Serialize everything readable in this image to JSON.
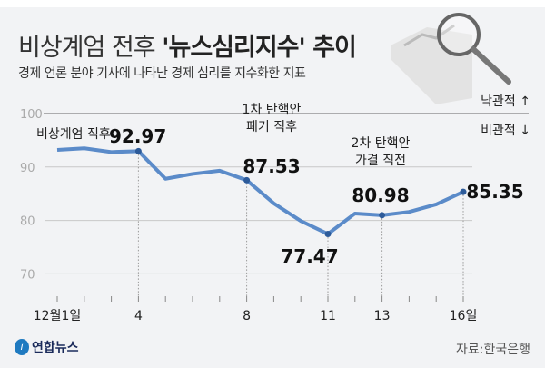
{
  "header": {
    "title_light": "비상계엄 전후",
    "title_bold": "'뉴스심리지수' 추이",
    "subtitle": "경제 언론 분야 기사에 나타난 경제 심리를 지수화한 지표"
  },
  "footer": {
    "logo": "연합뉴스",
    "source": "자료:한국은행"
  },
  "colors": {
    "line": "#5b8bc9",
    "point": "#2d5b9a",
    "grid": "#c8c8c8",
    "background": "#f2f3f5"
  },
  "chart_data": {
    "type": "line",
    "title": "비상계엄 전후 '뉴스심리지수' 추이",
    "subtitle": "경제 언론 분야 기사에 나타난 경제 심리를 지수화한 지표",
    "x": [
      1,
      2,
      3,
      4,
      5,
      6,
      7,
      8,
      9,
      10,
      11,
      12,
      13,
      14,
      15,
      16
    ],
    "values": [
      93.2,
      93.5,
      92.8,
      92.97,
      87.8,
      88.7,
      89.3,
      87.53,
      83.2,
      79.9,
      77.47,
      81.3,
      80.98,
      81.6,
      83.0,
      85.35
    ],
    "x_tick_labels": [
      {
        "x": 1,
        "label": "12월1일"
      },
      {
        "x": 4,
        "label": "4"
      },
      {
        "x": 8,
        "label": "8"
      },
      {
        "x": 11,
        "label": "11"
      },
      {
        "x": 13,
        "label": "13"
      },
      {
        "x": 16,
        "label": "16일"
      }
    ],
    "y_ticks": [
      100,
      90,
      80,
      70
    ],
    "ylim": [
      67,
      100
    ],
    "grid": true,
    "direction_labels": {
      "up": "낙관적 ↑",
      "down": "비관적 ↓"
    },
    "highlights": [
      {
        "x": 4,
        "value_label": "92.97",
        "note": [
          "비상계엄 직후"
        ]
      },
      {
        "x": 8,
        "value_label": "87.53",
        "note": [
          "1차 탄핵안",
          "폐기 직후"
        ]
      },
      {
        "x": 11,
        "value_label": "77.47",
        "note": []
      },
      {
        "x": 13,
        "value_label": "80.98",
        "note": [
          "2차 탄핵안",
          "가결 직전"
        ]
      },
      {
        "x": 16,
        "value_label": "85.35",
        "note": []
      }
    ]
  }
}
